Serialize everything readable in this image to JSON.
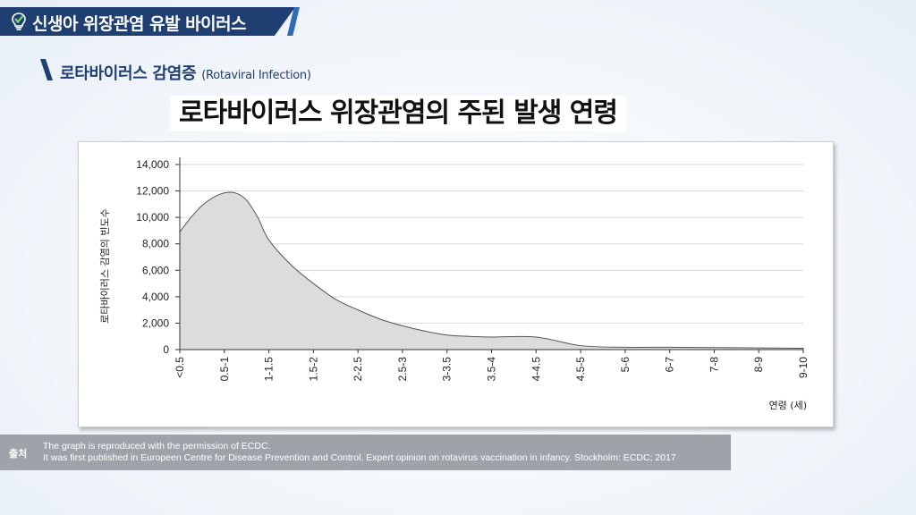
{
  "header": {
    "title": "신생아 위장관염 유발 바이러스",
    "icon": "lightbulb-icon",
    "colors": {
      "navy": "#1f3f73",
      "accent_blue": "#2f6ab5"
    }
  },
  "section": {
    "title": "로타바이러스 감염증",
    "subtitle": "(Rotaviral Infection)"
  },
  "main_title": "로타바이러스 위장관염의 주된 발생 연령",
  "chart_data": {
    "type": "area",
    "title": "로타바이러스 위장관염의 주된 발생 연령",
    "xlabel": "연령 (세)",
    "ylabel": "로타바이러스 감염의 빈도수",
    "categories": [
      "<0.5",
      "0.5-1",
      "1-1.5",
      "1.5-2",
      "2-2.5",
      "2.5-3",
      "3-3.5",
      "3.5-4",
      "4-4.5",
      "4.5-5",
      "5-6",
      "6-7",
      "7-8",
      "8-9",
      "9-10"
    ],
    "y_ticks": [
      "0",
      "2,000",
      "4,000",
      "6,000",
      "8,000",
      "10,000",
      "12,000",
      "14,000"
    ],
    "ylim": [
      0,
      14000
    ],
    "grid": true,
    "fill_color": "#dcdcdc",
    "series": [
      {
        "x": [
          0,
          0.25,
          0.5,
          0.75,
          1,
          1.25,
          1.5,
          1.75,
          2,
          2.5,
          3,
          3.5,
          4,
          4.5,
          5,
          5.5,
          6,
          6.5,
          7,
          8,
          9,
          10,
          11,
          12,
          13,
          14
        ],
        "y": [
          8900,
          10000,
          10900,
          11500,
          11850,
          11850,
          11300,
          10000,
          8300,
          6400,
          5000,
          3800,
          3000,
          2300,
          1800,
          1400,
          1100,
          1000,
          950,
          950,
          300,
          180,
          180,
          150,
          130,
          100
        ]
      }
    ]
  },
  "source": {
    "label": "출처",
    "line1": "The graph is reproduced with the permission of ECDC.",
    "line2": "It was first published in Europeen Centre for Disease Prevention and Control. Expert opinion on rotavirus vaccination in infancy. Stockholm: ECDC; 2017"
  }
}
